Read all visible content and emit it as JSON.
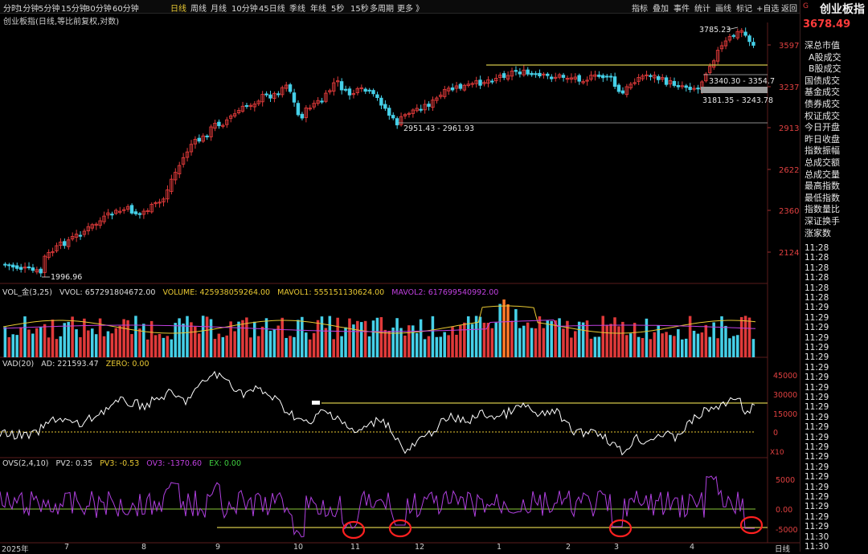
{
  "toolbar": {
    "timeframes": [
      "分时",
      "1分钟",
      "5分钟",
      "15分钟",
      "30分钟",
      "60分钟",
      "日线",
      "周线",
      "月线",
      "10分钟",
      "45日线",
      "季线",
      "年线",
      "5秒",
      "15秒",
      "多周期",
      "更多 》"
    ],
    "active_timeframe": "日线",
    "tools": [
      "指标",
      "叠加",
      "事件",
      "统计",
      "画线",
      "标记",
      "+自选",
      "返回"
    ]
  },
  "chart_title": "创业板指(日线,等比前复权,对数)",
  "header": {
    "name": "创业板指",
    "price": "3678.49",
    "flag": "G"
  },
  "main_chart": {
    "price_labels": [
      "3597",
      "3237",
      "2913",
      "2622",
      "2360",
      "2124"
    ],
    "annotations": {
      "high": "3785.23",
      "low_start": "1996.96",
      "box_upper": "3340.30 - 3354.7",
      "box_lower": "3181.35 - 3243.78",
      "support": "2951.43 - 2961.93"
    }
  },
  "vol_panel": {
    "title": "VOL_金(3,25)",
    "vvol": "VVOL: 657291804672.00",
    "volume": "VOLUME: 425938059264.00",
    "mavol1": "MAVOL1: 555151130624.00",
    "mavol2": "MAVOL2: 617699540992.00"
  },
  "vad_panel": {
    "title": "VAD(20)",
    "ad": "AD: 221593.47",
    "zero": "ZERO: 0.00",
    "axis": [
      "45000",
      "30000",
      "15000",
      "0"
    ],
    "multiplier": "X10"
  },
  "ovs_panel": {
    "title": "OVS(2,4,10)",
    "pv2": "PV2: 0.35",
    "pv3": "PV3: -0.53",
    "ov3": "OV3: -1370.60",
    "ex": "EX: 0.00",
    "axis": [
      "5000",
      "0.00",
      "-5000"
    ]
  },
  "x_axis": [
    "2025年",
    "7",
    "8",
    "9",
    "10",
    "11",
    "12",
    "1",
    "2",
    "3",
    "4"
  ],
  "x_axis_period": "日线",
  "sidebar": {
    "menu": [
      "深总市值",
      "A股成交",
      "B股成交",
      "国债成交",
      "基金成交",
      "债券成交",
      "权证成交",
      "今日开盘",
      "昨日收盘",
      "指数振幅",
      "总成交额",
      "总成交量",
      "最高指数",
      "最低指数",
      "指数量比",
      "深证换手",
      "涨家数"
    ],
    "times": [
      "11:28",
      "11:28",
      "11:28",
      "11:28",
      "11:28",
      "11:28",
      "11:29",
      "11:29",
      "11:29",
      "11:29",
      "11:29",
      "11:29",
      "11:29",
      "11:29",
      "11:29",
      "11:29",
      "11:29",
      "11:29",
      "11:29",
      "11:29",
      "11:29",
      "11:29",
      "11:29",
      "11:29",
      "11:29",
      "11:29",
      "11:29",
      "11:29",
      "11:29",
      "11:30",
      "11:30"
    ]
  },
  "colors": {
    "up": "#e03a3a",
    "down": "#45d0e8",
    "line": "#d4c64a",
    "accent": "#e8c832",
    "ovs": "#b040e0",
    "ad": "#ffffff"
  }
}
